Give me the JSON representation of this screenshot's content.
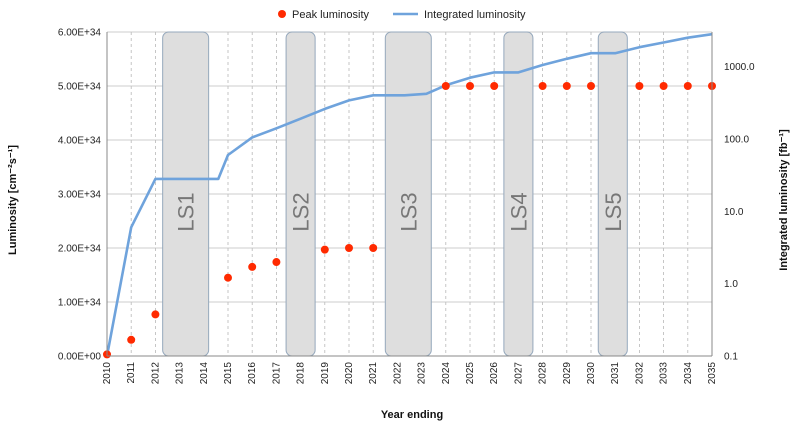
{
  "chart_data": {
    "type": "line",
    "xlabel": "Year ending",
    "ylabel": "Luminosity [cm⁻²s⁻¹]",
    "y2label": "Integrated luminosity [fb⁻¹]",
    "x": [
      2010,
      2011,
      2012,
      2013,
      2014,
      2015,
      2016,
      2017,
      2018,
      2019,
      2020,
      2021,
      2022,
      2023,
      2024,
      2025,
      2026,
      2027,
      2028,
      2029,
      2030,
      2031,
      2032,
      2033,
      2034,
      2035
    ],
    "xlim": [
      2010,
      2035
    ],
    "ylim": [
      0,
      6e+34
    ],
    "y_ticks": [
      0,
      1e+34,
      2e+34,
      3e+34,
      4e+34,
      5e+34,
      6e+34
    ],
    "y_tick_labels": [
      "0.00E+00",
      "1.00E+34",
      "2.00E+34",
      "3.00E+34",
      "4.00E+34",
      "5.00E+34",
      "6.00E+34"
    ],
    "y2_scale": "log",
    "y2lim": [
      0.1,
      3000
    ],
    "y2_ticks": [
      0.1,
      1.0,
      10.0,
      100.0,
      1000.0
    ],
    "y2_tick_labels": [
      "0.1",
      "1.0",
      "10.0",
      "100.0",
      "1000.0"
    ],
    "grid": true,
    "legend_position": "top-center",
    "series": [
      {
        "name": "Peak luminosity",
        "style": "scatter",
        "axis": "left",
        "color": "#ff2a00",
        "points": [
          [
            2010,
            3e+32
          ],
          [
            2011,
            3e+33
          ],
          [
            2012,
            7.7e+33
          ],
          [
            2015,
            1.45e+34
          ],
          [
            2016,
            1.65e+34
          ],
          [
            2017,
            1.74e+34
          ],
          [
            2019,
            1.97e+34
          ],
          [
            2020,
            2e+34
          ],
          [
            2021,
            2e+34
          ],
          [
            2024,
            5e+34
          ],
          [
            2025,
            5e+34
          ],
          [
            2026,
            5e+34
          ],
          [
            2028,
            5e+34
          ],
          [
            2029,
            5e+34
          ],
          [
            2030,
            5e+34
          ],
          [
            2032,
            5e+34
          ],
          [
            2033,
            5e+34
          ],
          [
            2034,
            5e+34
          ],
          [
            2035,
            5e+34
          ]
        ]
      },
      {
        "name": "Integrated luminosity",
        "style": "line",
        "axis": "right",
        "color": "#6fa3dc",
        "points": [
          [
            2010,
            0.1
          ],
          [
            2011,
            6
          ],
          [
            2012,
            28
          ],
          [
            2013.2,
            28
          ],
          [
            2014.3,
            28
          ],
          [
            2014.6,
            28
          ],
          [
            2015,
            60
          ],
          [
            2016,
            105
          ],
          [
            2017,
            140
          ],
          [
            2018,
            190
          ],
          [
            2019,
            260
          ],
          [
            2020,
            340
          ],
          [
            2021,
            400
          ],
          [
            2022.3,
            400
          ],
          [
            2023.2,
            420
          ],
          [
            2024,
            550
          ],
          [
            2025,
            700
          ],
          [
            2026,
            830
          ],
          [
            2027,
            830
          ],
          [
            2028,
            1050
          ],
          [
            2029,
            1280
          ],
          [
            2030,
            1530
          ],
          [
            2031,
            1530
          ],
          [
            2032,
            1850
          ],
          [
            2033,
            2150
          ],
          [
            2034,
            2500
          ],
          [
            2035,
            2800
          ]
        ]
      }
    ],
    "shutdowns": [
      {
        "label": "LS1",
        "start": 2012.3,
        "end": 2014.2
      },
      {
        "label": "LS2",
        "start": 2017.4,
        "end": 2018.6
      },
      {
        "label": "LS3",
        "start": 2021.5,
        "end": 2023.4
      },
      {
        "label": "LS4",
        "start": 2026.4,
        "end": 2027.6
      },
      {
        "label": "LS5",
        "start": 2030.3,
        "end": 2031.5
      }
    ]
  }
}
